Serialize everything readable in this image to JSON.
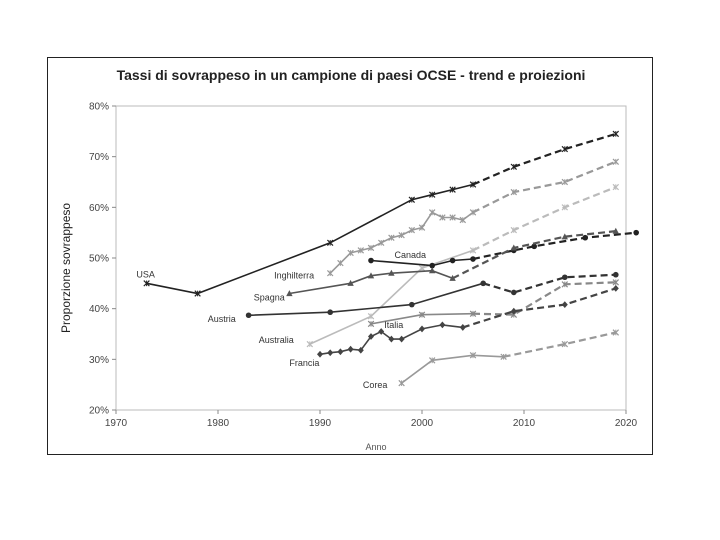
{
  "chart_data": {
    "type": "line",
    "title": "Tassi di sovrappeso in un campione di paesi OCSE  - trend e proiezioni",
    "xlabel": "Anno",
    "ylabel": "Proporzione sovrappeso",
    "xlim": [
      1970,
      2020
    ],
    "ylim": [
      20,
      80
    ],
    "x_ticks": [
      "1970",
      "1980",
      "1990",
      "2000",
      "2010",
      "2020"
    ],
    "y_ticks": [
      "20%",
      "30%",
      "40%",
      "50%",
      "60%",
      "70%",
      "80%"
    ],
    "grid": false,
    "legend": "none",
    "series": [
      {
        "name": "USA",
        "color": "#222222",
        "marker": "x",
        "actual": [
          [
            1973,
            45
          ],
          [
            1978,
            43
          ],
          [
            1991,
            53
          ],
          [
            1999,
            61.5
          ],
          [
            2001,
            62.5
          ],
          [
            2003,
            63.5
          ],
          [
            2005,
            64.5
          ]
        ],
        "projected": [
          [
            2005,
            64.5
          ],
          [
            2009,
            68
          ],
          [
            2014,
            71.5
          ],
          [
            2019,
            74.5
          ]
        ]
      },
      {
        "name": "Inghilterra",
        "color": "#999999",
        "marker": "x",
        "actual": [
          [
            1991,
            47
          ],
          [
            1992,
            49
          ],
          [
            1993,
            51
          ],
          [
            1994,
            51.5
          ],
          [
            1995,
            52
          ],
          [
            1996,
            53
          ],
          [
            1997,
            54
          ],
          [
            1998,
            54.5
          ],
          [
            1999,
            55.5
          ],
          [
            2000,
            56
          ],
          [
            2001,
            59
          ],
          [
            2002,
            58
          ],
          [
            2003,
            58
          ],
          [
            2004,
            57.5
          ],
          [
            2005,
            59
          ]
        ],
        "projected": [
          [
            2005,
            59
          ],
          [
            2009,
            63
          ],
          [
            2014,
            65
          ],
          [
            2019,
            69
          ]
        ]
      },
      {
        "name": "Australia",
        "color": "#bbbbbb",
        "marker": "x",
        "actual": [
          [
            1989,
            33
          ],
          [
            1995,
            38.5
          ],
          [
            2000,
            48
          ],
          [
            2005,
            51.5
          ]
        ],
        "projected": [
          [
            2005,
            51.5
          ],
          [
            2009,
            55.5
          ],
          [
            2014,
            60
          ],
          [
            2019,
            64
          ]
        ]
      },
      {
        "name": "Canada",
        "color": "#222222",
        "marker": "circle",
        "actual": [
          [
            1995,
            49.5
          ],
          [
            2001,
            48.5
          ],
          [
            2003,
            49.5
          ],
          [
            2005,
            49.8
          ]
        ],
        "projected": [
          [
            2005,
            49.8
          ],
          [
            2009,
            51.5
          ],
          [
            2011,
            52.3
          ],
          [
            2016,
            54
          ],
          [
            2021,
            55
          ]
        ]
      },
      {
        "name": "Spagna",
        "color": "#555555",
        "marker": "triangle",
        "actual": [
          [
            1987,
            43
          ],
          [
            1993,
            45
          ],
          [
            1995,
            46.5
          ],
          [
            1997,
            47
          ],
          [
            2001,
            47.5
          ],
          [
            2003,
            46
          ]
        ],
        "projected": [
          [
            2003,
            46
          ],
          [
            2009,
            52
          ],
          [
            2014,
            54.2
          ],
          [
            2019,
            55.3
          ]
        ]
      },
      {
        "name": "Austria",
        "color": "#333333",
        "marker": "circle",
        "actual": [
          [
            1983,
            38.7
          ],
          [
            1991,
            39.3
          ],
          [
            1999,
            40.8
          ],
          [
            2006,
            45
          ]
        ],
        "projected": [
          [
            2006,
            45
          ],
          [
            2009,
            43.2
          ],
          [
            2014,
            46.2
          ],
          [
            2019,
            46.7
          ]
        ]
      },
      {
        "name": "Italia",
        "color": "#888888",
        "marker": "x",
        "actual": [
          [
            1995,
            37
          ],
          [
            2000,
            38.8
          ],
          [
            2005,
            39
          ]
        ],
        "projected": [
          [
            2005,
            39
          ],
          [
            2009,
            38.8
          ],
          [
            2014,
            44.8
          ],
          [
            2019,
            45.2
          ]
        ]
      },
      {
        "name": "Francia",
        "color": "#444444",
        "marker": "diamond",
        "actual": [
          [
            1990,
            31
          ],
          [
            1991,
            31.3
          ],
          [
            1992,
            31.5
          ],
          [
            1993,
            32
          ],
          [
            1994,
            31.8
          ],
          [
            1995,
            34.5
          ],
          [
            1996,
            35.5
          ],
          [
            1997,
            34
          ],
          [
            1998,
            34
          ],
          [
            2000,
            36
          ],
          [
            2002,
            36.8
          ],
          [
            2004,
            36.3
          ]
        ],
        "projected": [
          [
            2004,
            36.3
          ],
          [
            2009,
            39.5
          ],
          [
            2014,
            40.8
          ],
          [
            2019,
            44
          ]
        ]
      },
      {
        "name": "Corea",
        "color": "#999999",
        "marker": "x",
        "actual": [
          [
            1998,
            25.3
          ],
          [
            2001,
            29.8
          ],
          [
            2005,
            30.8
          ],
          [
            2008,
            30.5
          ]
        ],
        "projected": [
          [
            2008,
            30.5
          ],
          [
            2014,
            33
          ],
          [
            2019,
            35.3
          ]
        ]
      }
    ],
    "annotations": [
      {
        "text": "USA",
        "x": 1972,
        "y": 46.2
      },
      {
        "text": "Canada",
        "x": 1997.3,
        "y": 50
      },
      {
        "text": "Inghilterra",
        "x": 1985.5,
        "y": 46
      },
      {
        "text": "Spagna",
        "x": 1983.5,
        "y": 41.6
      },
      {
        "text": "Austria",
        "x": 1979,
        "y": 37.4
      },
      {
        "text": "Italia",
        "x": 1996.3,
        "y": 36.2
      },
      {
        "text": "Australia",
        "x": 1984,
        "y": 33.2
      },
      {
        "text": "Francia",
        "x": 1987,
        "y": 28.7
      },
      {
        "text": "Corea",
        "x": 1994.2,
        "y": 24.3
      }
    ]
  }
}
